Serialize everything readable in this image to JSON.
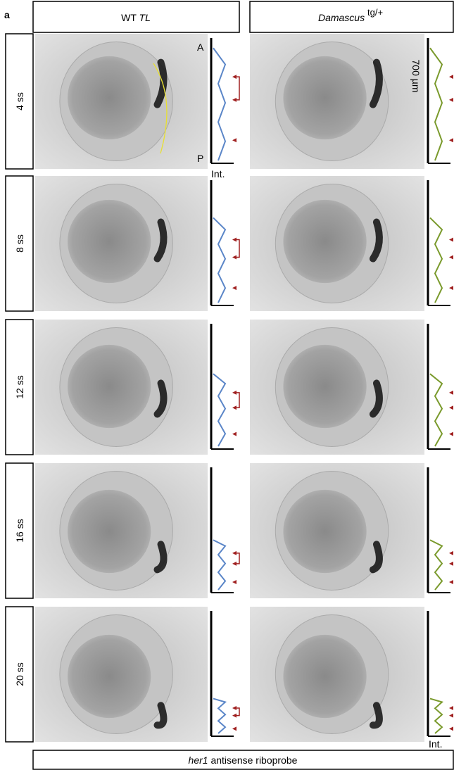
{
  "panel_label": "a",
  "columns": [
    {
      "label": "WT",
      "label_italic": "TL"
    },
    {
      "label_italic": "Damascus",
      "superscript": "tg/+"
    }
  ],
  "rows": [
    "4 ss",
    "8 ss",
    "12 ss",
    "16 ss",
    "20 ss"
  ],
  "axis_labels": {
    "anterior": "A",
    "posterior": "P",
    "intensity": "Int.",
    "scale": "700 µm"
  },
  "footer": {
    "italic": "her1",
    "text": "antisense riboprobe"
  }
}
